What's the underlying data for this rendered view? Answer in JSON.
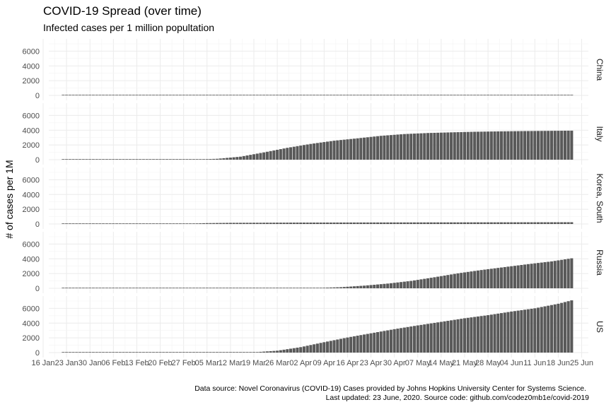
{
  "chart_data": {
    "type": "bar",
    "title": "COVID-19 Spread (over time)",
    "subtitle": "Infected cases per 1 million popultation",
    "ylabel": "# of cases per 1M",
    "xlabel": "",
    "caption_line1": "Data source: Novel Coronavirus (COVID-19) Cases provided by Johns Hopkins University Center for Systems Science.",
    "caption_line2": "Last updated: 23 June, 2020. Source code: github.com/codez0mb1e/covid-2019",
    "ylim": [
      0,
      7000
    ],
    "yticks": [
      0,
      2000,
      4000,
      6000
    ],
    "grid": true,
    "x_tick_labels": [
      "16 Jan",
      "23 Jan",
      "30 Jan",
      "06 Feb",
      "13 Feb",
      "20 Feb",
      "27 Feb",
      "05 Mar",
      "12 Mar",
      "19 Mar",
      "26 Mar",
      "02 Apr",
      "09 Apr",
      "16 Apr",
      "23 Apr",
      "30 Apr",
      "07 May",
      "14 May",
      "21 May",
      "28 May",
      "04 Jun",
      "11 Jun",
      "18 Jun",
      "25 Jun"
    ],
    "x_range": [
      "2020-01-16",
      "2020-06-27"
    ],
    "bar_date_range": [
      "2020-01-22",
      "2020-06-22"
    ],
    "panels": [
      {
        "name": "China",
        "points": [
          [
            "2020-01-22",
            1
          ],
          [
            "2020-02-05",
            20
          ],
          [
            "2020-02-20",
            52
          ],
          [
            "2020-03-10",
            57
          ],
          [
            "2020-06-22",
            60
          ]
        ]
      },
      {
        "name": "Italy",
        "points": [
          [
            "2020-01-22",
            0
          ],
          [
            "2020-02-20",
            0
          ],
          [
            "2020-02-22",
            1
          ],
          [
            "2020-03-01",
            25
          ],
          [
            "2020-03-08",
            120
          ],
          [
            "2020-03-15",
            410
          ],
          [
            "2020-03-22",
            990
          ],
          [
            "2020-03-29",
            1610
          ],
          [
            "2020-04-05",
            2140
          ],
          [
            "2020-04-12",
            2580
          ],
          [
            "2020-04-19",
            2900
          ],
          [
            "2020-04-26",
            3240
          ],
          [
            "2020-05-03",
            3480
          ],
          [
            "2020-05-10",
            3620
          ],
          [
            "2020-05-17",
            3710
          ],
          [
            "2020-05-24",
            3790
          ],
          [
            "2020-05-31",
            3840
          ],
          [
            "2020-06-07",
            3880
          ],
          [
            "2020-06-14",
            3910
          ],
          [
            "2020-06-22",
            3940
          ]
        ]
      },
      {
        "name": "Korea, South",
        "points": [
          [
            "2020-01-22",
            0
          ],
          [
            "2020-02-15",
            1
          ],
          [
            "2020-02-20",
            2
          ],
          [
            "2020-02-27",
            34
          ],
          [
            "2020-03-05",
            117
          ],
          [
            "2020-03-12",
            155
          ],
          [
            "2020-03-19",
            166
          ],
          [
            "2020-04-01",
            190
          ],
          [
            "2020-05-01",
            208
          ],
          [
            "2020-06-01",
            225
          ],
          [
            "2020-06-22",
            239
          ]
        ]
      },
      {
        "name": "Russia",
        "points": [
          [
            "2020-01-22",
            0
          ],
          [
            "2020-03-15",
            0
          ],
          [
            "2020-03-31",
            13
          ],
          [
            "2020-04-07",
            50
          ],
          [
            "2020-04-14",
            150
          ],
          [
            "2020-04-21",
            360
          ],
          [
            "2020-04-28",
            640
          ],
          [
            "2020-05-05",
            1000
          ],
          [
            "2020-05-12",
            1500
          ],
          [
            "2020-05-19",
            2030
          ],
          [
            "2020-05-26",
            2480
          ],
          [
            "2020-06-02",
            2880
          ],
          [
            "2020-06-09",
            3280
          ],
          [
            "2020-06-16",
            3650
          ],
          [
            "2020-06-22",
            4070
          ]
        ]
      },
      {
        "name": "US",
        "points": [
          [
            "2020-01-22",
            0
          ],
          [
            "2020-03-01",
            0
          ],
          [
            "2020-03-15",
            10
          ],
          [
            "2020-03-19",
            43
          ],
          [
            "2020-03-26",
            255
          ],
          [
            "2020-04-02",
            740
          ],
          [
            "2020-04-09",
            1410
          ],
          [
            "2020-04-16",
            2050
          ],
          [
            "2020-04-23",
            2620
          ],
          [
            "2020-04-30",
            3180
          ],
          [
            "2020-05-07",
            3690
          ],
          [
            "2020-05-14",
            4170
          ],
          [
            "2020-05-21",
            4660
          ],
          [
            "2020-05-28",
            5080
          ],
          [
            "2020-06-04",
            5570
          ],
          [
            "2020-06-11",
            6010
          ],
          [
            "2020-06-18",
            6630
          ],
          [
            "2020-06-22",
            7090
          ]
        ]
      }
    ]
  }
}
